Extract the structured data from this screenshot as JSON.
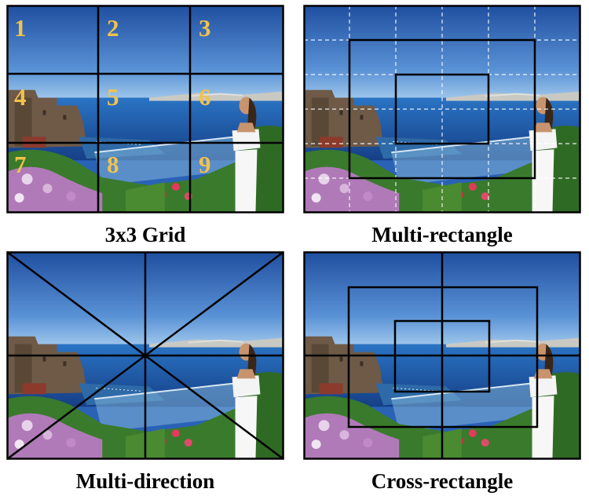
{
  "panels": [
    {
      "caption": "3x3 Grid",
      "overlay": "grid-3x3",
      "cell_numbers": [
        "1",
        "2",
        "3",
        "4",
        "5",
        "6",
        "7",
        "8",
        "9"
      ]
    },
    {
      "caption": "Multi-rectangle",
      "overlay": "nested-rectangles-with-dashed-grid"
    },
    {
      "caption": "Multi-direction",
      "overlay": "cross-and-diagonals"
    },
    {
      "caption": "Cross-rectangle",
      "overlay": "nested-rectangles-with-cross"
    }
  ],
  "colors": {
    "frame": "#000000",
    "guide_line": "#000000",
    "dashed_guide": "#ffffff",
    "number_label": "#f2c24a",
    "sky_top": "#1f4fa0",
    "sea": "#1e64b4"
  }
}
